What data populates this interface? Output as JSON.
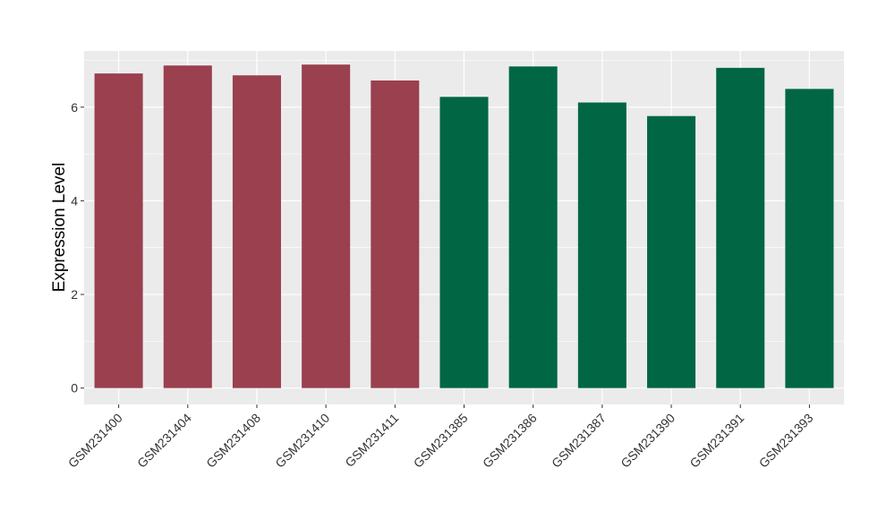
{
  "chart_data": {
    "type": "bar",
    "title": "",
    "xlabel": "",
    "ylabel": "Expression Level",
    "ylim": [
      -0.35,
      7.2
    ],
    "yticks": [
      0,
      2,
      4,
      6
    ],
    "grid": true,
    "categories": [
      "GSM231400",
      "GSM231404",
      "GSM231408",
      "GSM231410",
      "GSM231411",
      "GSM231385",
      "GSM231386",
      "GSM231387",
      "GSM231390",
      "GSM231391",
      "GSM231393"
    ],
    "values": [
      6.72,
      6.89,
      6.68,
      6.91,
      6.57,
      6.22,
      6.87,
      6.1,
      5.81,
      6.84,
      6.39
    ],
    "bar_colors": [
      "#9A404E",
      "#9A404E",
      "#9A404E",
      "#9A404E",
      "#9A404E",
      "#006644",
      "#006644",
      "#006644",
      "#006644",
      "#006644",
      "#006644"
    ],
    "panel_background": "#EBEBEB",
    "grid_color": "#FFFFFF"
  }
}
